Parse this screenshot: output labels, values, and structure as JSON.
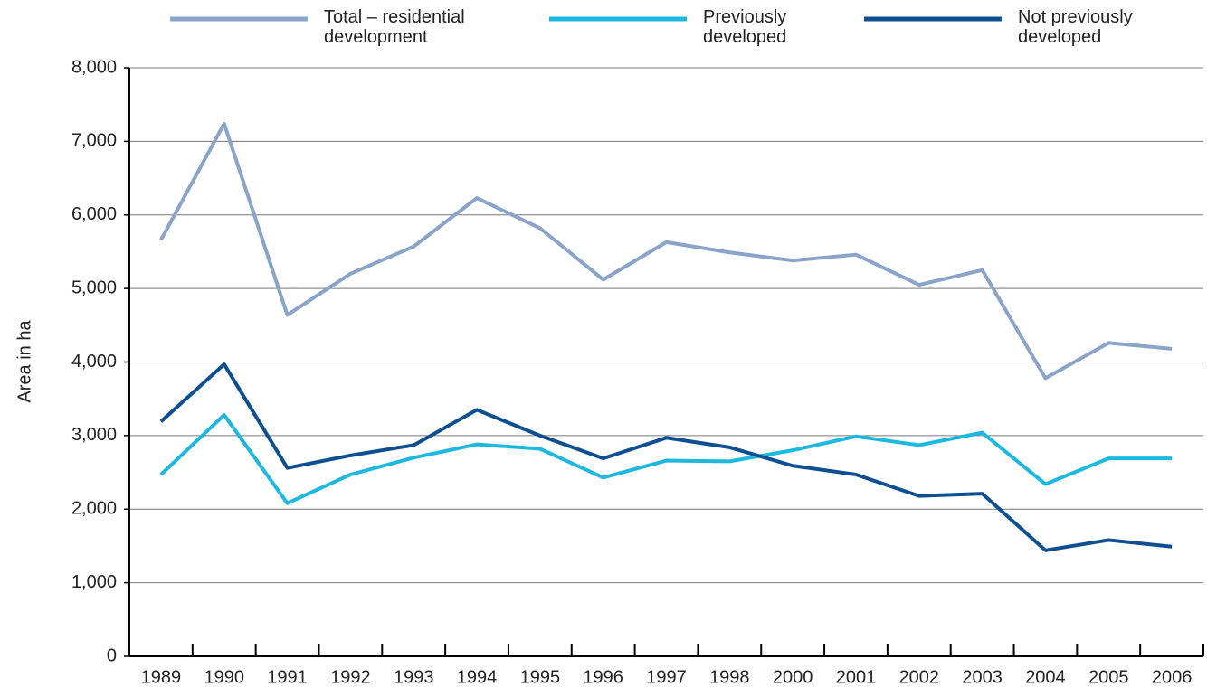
{
  "chart_data": {
    "type": "line",
    "y_label": "Area in ha",
    "categories": [
      "1989",
      "1990",
      "1991",
      "1992",
      "1993",
      "1994",
      "1995",
      "1996",
      "1997",
      "1998",
      "2000",
      "2001",
      "2002",
      "2003",
      "2004",
      "2005",
      "2006"
    ],
    "series": [
      {
        "name": "Total – residential development",
        "color": "#8aa3c8",
        "values": [
          5660,
          7240,
          4640,
          5200,
          5570,
          6230,
          5820,
          5120,
          5630,
          5490,
          5380,
          5460,
          5050,
          5250,
          3780,
          4260,
          4180
        ]
      },
      {
        "name": "Previously developed",
        "color": "#1cb8e0",
        "values": [
          2470,
          3280,
          2080,
          2470,
          2700,
          2880,
          2820,
          2430,
          2660,
          2650,
          2800,
          2990,
          2870,
          3040,
          2340,
          2690,
          2690
        ]
      },
      {
        "name": "Not previously developed",
        "color": "#0d4f91",
        "values": [
          3190,
          3970,
          2560,
          2730,
          2870,
          3350,
          3000,
          2690,
          2970,
          2840,
          2590,
          2470,
          2180,
          2210,
          1440,
          1580,
          1490
        ]
      }
    ],
    "ylim": [
      0,
      8000
    ],
    "yticks": [
      0,
      {
        "value": 1000,
        "label": "1,000"
      },
      {
        "value": 2000,
        "label": "2,000"
      },
      {
        "value": 3000,
        "label": "3,000"
      },
      {
        "value": 4000,
        "label": "4,000"
      },
      {
        "value": 5000,
        "label": "5,000"
      },
      {
        "value": 6000,
        "label": "6,000"
      },
      {
        "value": 7000,
        "label": "7,000"
      },
      {
        "value": 8000,
        "label": "8,000"
      }
    ],
    "grid": true
  }
}
